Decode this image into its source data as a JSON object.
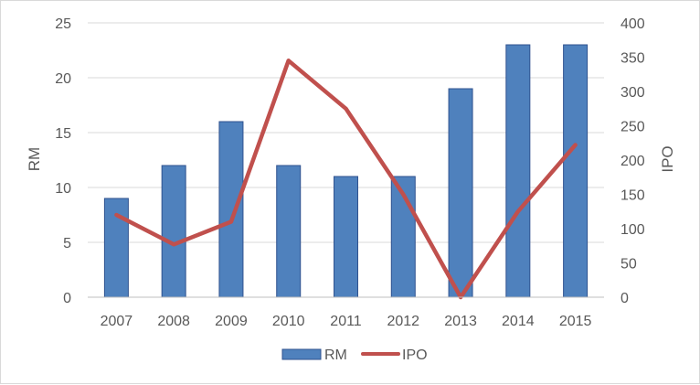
{
  "chart_data": {
    "type": "bar",
    "categories": [
      "2007",
      "2008",
      "2009",
      "2010",
      "2011",
      "2012",
      "2013",
      "2014",
      "2015"
    ],
    "series": [
      {
        "name": "RM",
        "type": "bar",
        "axis": "left",
        "color": "#4f81bd",
        "values": [
          9,
          12,
          16,
          12,
          11,
          11,
          19,
          23,
          23
        ]
      },
      {
        "name": "IPO",
        "type": "line",
        "axis": "right",
        "color": "#c0504d",
        "values": [
          120,
          77,
          110,
          345,
          275,
          150,
          0,
          125,
          222
        ]
      }
    ],
    "ylabel": "RM",
    "y2label": "IPO",
    "ylim": [
      0,
      25
    ],
    "y2lim": [
      0,
      400
    ],
    "yticks": [
      "0",
      "5",
      "10",
      "15",
      "20",
      "25"
    ],
    "y2ticks": [
      "0",
      "50",
      "100",
      "150",
      "200",
      "250",
      "300",
      "350",
      "400"
    ],
    "grid": true,
    "legend": "bottom"
  }
}
